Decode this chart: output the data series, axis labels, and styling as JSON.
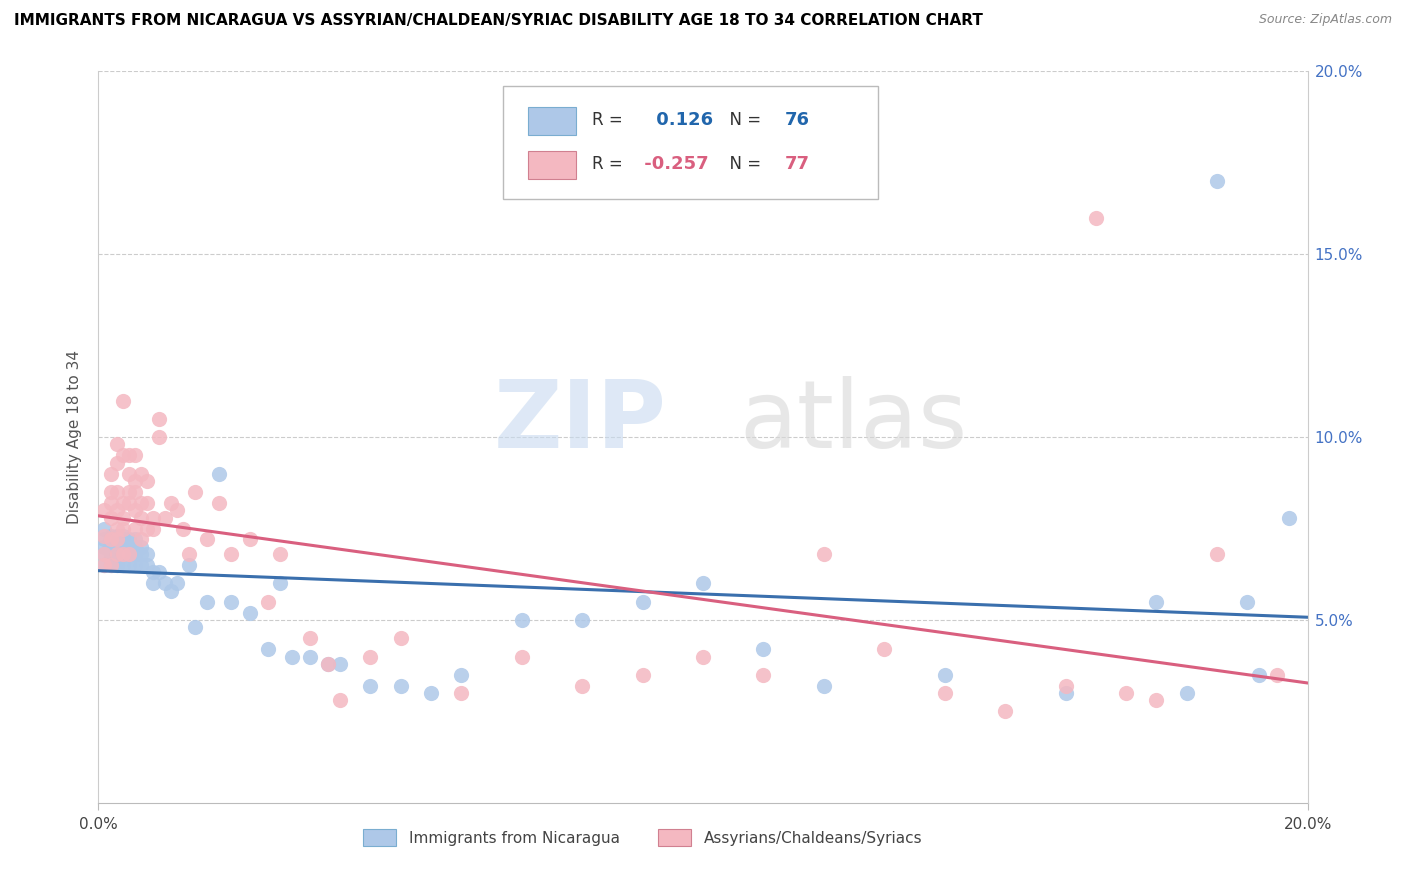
{
  "title": "IMMIGRANTS FROM NICARAGUA VS ASSYRIAN/CHALDEAN/SYRIAC DISABILITY AGE 18 TO 34 CORRELATION CHART",
  "source": "Source: ZipAtlas.com",
  "ylabel": "Disability Age 18 to 34",
  "blue_label": "Immigrants from Nicaragua",
  "pink_label": "Assyrians/Chaldeans/Syriacs",
  "blue_R": 0.126,
  "blue_N": 76,
  "pink_R": -0.257,
  "pink_N": 77,
  "blue_color": "#aec8e8",
  "pink_color": "#f4b8c1",
  "blue_line_color": "#3a6fad",
  "pink_line_color": "#d95f7f",
  "watermark_zip": "ZIP",
  "watermark_atlas": "atlas",
  "xlim": [
    0.0,
    0.2
  ],
  "ylim": [
    0.0,
    0.2
  ],
  "yticks": [
    0.05,
    0.1,
    0.15,
    0.2
  ],
  "blue_x": [
    0.001,
    0.001,
    0.001,
    0.001,
    0.001,
    0.002,
    0.002,
    0.002,
    0.002,
    0.002,
    0.002,
    0.002,
    0.003,
    0.003,
    0.003,
    0.003,
    0.003,
    0.003,
    0.003,
    0.004,
    0.004,
    0.004,
    0.004,
    0.004,
    0.004,
    0.005,
    0.005,
    0.005,
    0.005,
    0.005,
    0.006,
    0.006,
    0.006,
    0.006,
    0.006,
    0.007,
    0.007,
    0.007,
    0.008,
    0.008,
    0.009,
    0.009,
    0.01,
    0.011,
    0.012,
    0.013,
    0.015,
    0.016,
    0.018,
    0.02,
    0.022,
    0.025,
    0.028,
    0.03,
    0.032,
    0.035,
    0.038,
    0.04,
    0.045,
    0.05,
    0.055,
    0.06,
    0.07,
    0.08,
    0.09,
    0.1,
    0.11,
    0.12,
    0.14,
    0.16,
    0.175,
    0.18,
    0.185,
    0.19,
    0.192,
    0.197
  ],
  "blue_y": [
    0.07,
    0.072,
    0.068,
    0.075,
    0.065,
    0.068,
    0.072,
    0.07,
    0.065,
    0.073,
    0.068,
    0.071,
    0.068,
    0.072,
    0.07,
    0.065,
    0.073,
    0.068,
    0.065,
    0.068,
    0.07,
    0.072,
    0.065,
    0.073,
    0.068,
    0.068,
    0.065,
    0.07,
    0.072,
    0.068,
    0.065,
    0.068,
    0.07,
    0.072,
    0.068,
    0.065,
    0.068,
    0.07,
    0.065,
    0.068,
    0.06,
    0.063,
    0.063,
    0.06,
    0.058,
    0.06,
    0.065,
    0.048,
    0.055,
    0.09,
    0.055,
    0.052,
    0.042,
    0.06,
    0.04,
    0.04,
    0.038,
    0.038,
    0.032,
    0.032,
    0.03,
    0.035,
    0.05,
    0.05,
    0.055,
    0.06,
    0.042,
    0.032,
    0.035,
    0.03,
    0.055,
    0.03,
    0.17,
    0.055,
    0.035,
    0.078
  ],
  "pink_x": [
    0.001,
    0.001,
    0.001,
    0.001,
    0.002,
    0.002,
    0.002,
    0.002,
    0.002,
    0.002,
    0.003,
    0.003,
    0.003,
    0.003,
    0.003,
    0.003,
    0.003,
    0.004,
    0.004,
    0.004,
    0.004,
    0.004,
    0.004,
    0.005,
    0.005,
    0.005,
    0.005,
    0.005,
    0.006,
    0.006,
    0.006,
    0.006,
    0.006,
    0.007,
    0.007,
    0.007,
    0.007,
    0.008,
    0.008,
    0.008,
    0.009,
    0.009,
    0.01,
    0.01,
    0.011,
    0.012,
    0.013,
    0.014,
    0.015,
    0.016,
    0.018,
    0.02,
    0.022,
    0.025,
    0.028,
    0.03,
    0.035,
    0.038,
    0.04,
    0.045,
    0.05,
    0.06,
    0.07,
    0.08,
    0.09,
    0.1,
    0.11,
    0.12,
    0.13,
    0.14,
    0.15,
    0.16,
    0.165,
    0.17,
    0.175,
    0.185,
    0.195
  ],
  "pink_y": [
    0.08,
    0.073,
    0.068,
    0.065,
    0.082,
    0.078,
    0.072,
    0.085,
    0.09,
    0.065,
    0.075,
    0.08,
    0.085,
    0.068,
    0.072,
    0.093,
    0.098,
    0.082,
    0.078,
    0.075,
    0.068,
    0.11,
    0.095,
    0.085,
    0.09,
    0.082,
    0.095,
    0.068,
    0.08,
    0.075,
    0.095,
    0.085,
    0.088,
    0.072,
    0.078,
    0.082,
    0.09,
    0.075,
    0.082,
    0.088,
    0.075,
    0.078,
    0.1,
    0.105,
    0.078,
    0.082,
    0.08,
    0.075,
    0.068,
    0.085,
    0.072,
    0.082,
    0.068,
    0.072,
    0.055,
    0.068,
    0.045,
    0.038,
    0.028,
    0.04,
    0.045,
    0.03,
    0.04,
    0.032,
    0.035,
    0.04,
    0.035,
    0.068,
    0.042,
    0.03,
    0.025,
    0.032,
    0.16,
    0.03,
    0.028,
    0.068,
    0.035
  ]
}
